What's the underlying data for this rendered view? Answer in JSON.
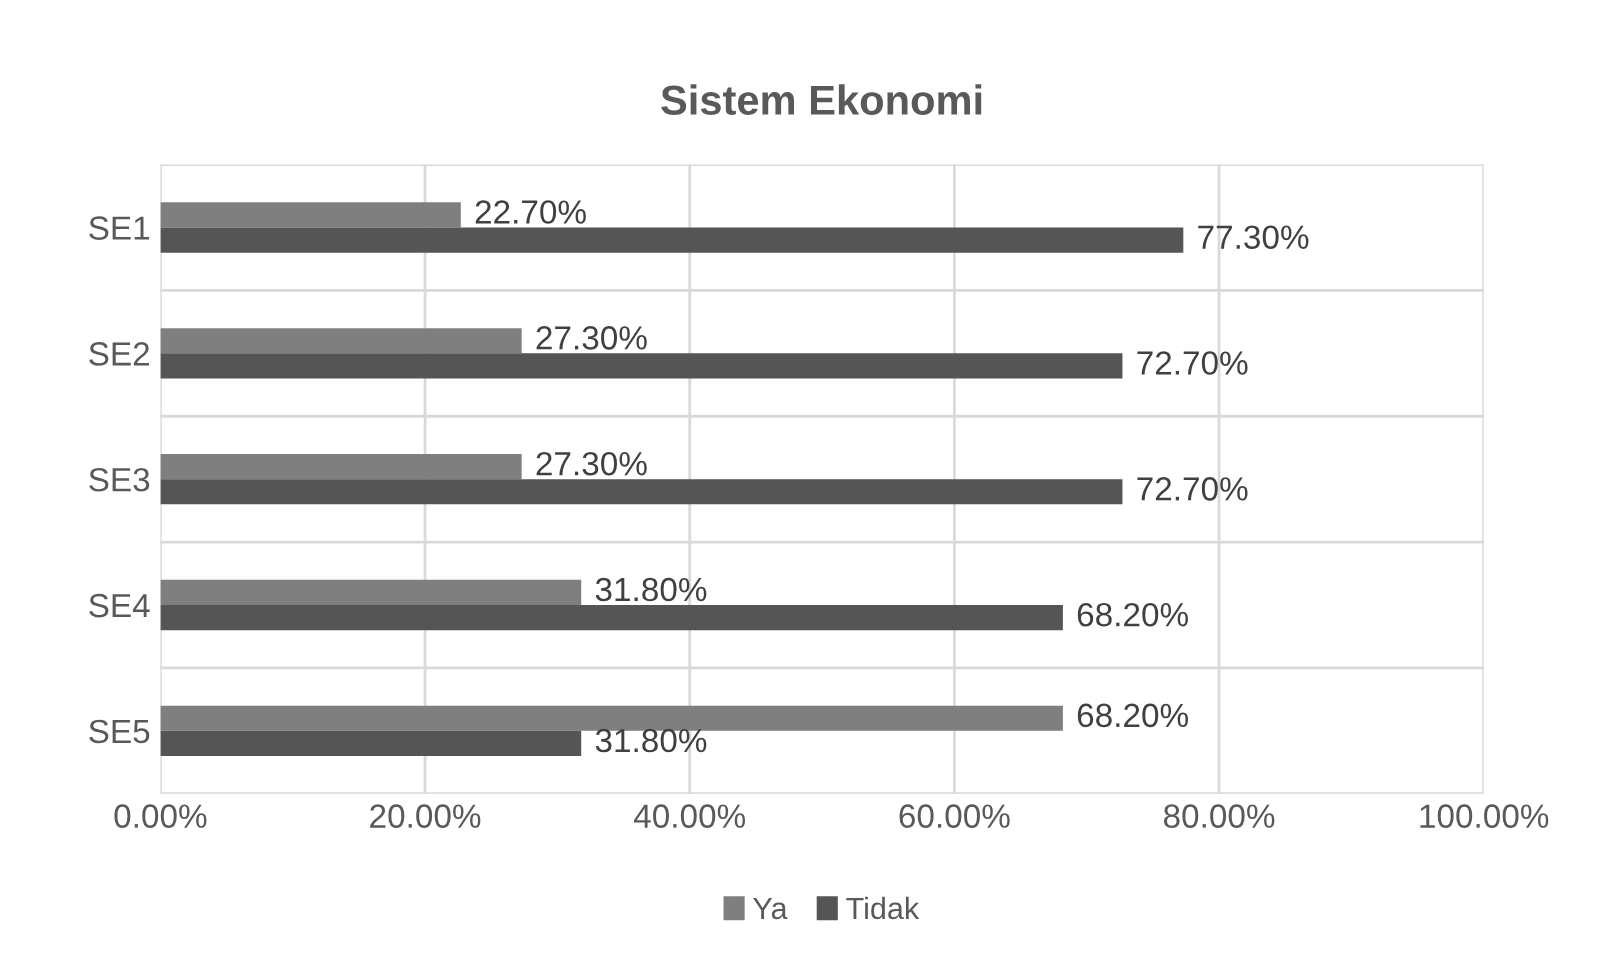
{
  "chart_data": {
    "type": "bar",
    "orientation": "horizontal",
    "title": "Sistem Ekonomi",
    "categories": [
      "SE1",
      "SE2",
      "SE3",
      "SE4",
      "SE5"
    ],
    "series": [
      {
        "name": "Ya",
        "color": "#7f7f7f",
        "values": [
          22.7,
          27.3,
          27.3,
          31.8,
          68.2
        ],
        "value_labels": [
          "22.70%",
          "27.30%",
          "27.30%",
          "31.80%",
          "68.20%"
        ]
      },
      {
        "name": "Tidak",
        "color": "#555555",
        "values": [
          77.3,
          72.7,
          72.7,
          68.2,
          31.8
        ],
        "value_labels": [
          "77.30%",
          "72.70%",
          "72.70%",
          "68.20%",
          "31.80%"
        ]
      }
    ],
    "xlim": [
      0,
      100
    ],
    "xticks": [
      {
        "value": 0,
        "label": "0.00%"
      },
      {
        "value": 20,
        "label": "20.00%"
      },
      {
        "value": 40,
        "label": "40.00%"
      },
      {
        "value": 60,
        "label": "60.00%"
      },
      {
        "value": 80,
        "label": "80.00%"
      },
      {
        "value": 100,
        "label": "100.00%"
      }
    ],
    "grid": "x",
    "legend": "bottom"
  }
}
